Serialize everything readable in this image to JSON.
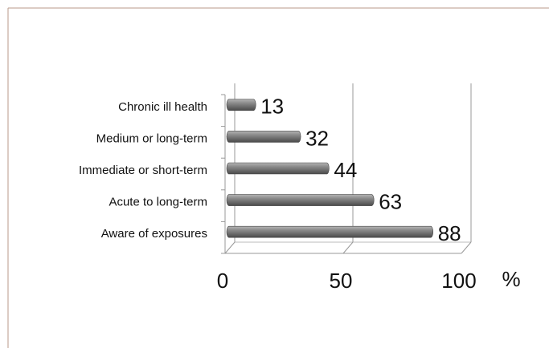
{
  "chart_data": {
    "type": "bar",
    "orientation": "horizontal",
    "categories": [
      "Chronic ill health",
      "Medium or long-term",
      "Immediate or short-term",
      "Acute to long-term",
      "Aware of exposures"
    ],
    "values": [
      13,
      32,
      44,
      63,
      88
    ],
    "color": "#7a7a7a",
    "xlim": [
      0,
      100
    ],
    "xticks": [
      0,
      50,
      100
    ],
    "xlabel": "%",
    "grid": true
  }
}
